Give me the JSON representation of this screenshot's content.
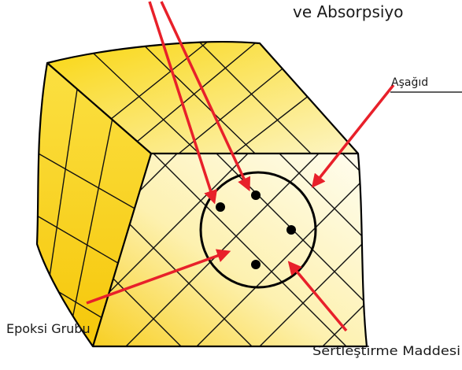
{
  "labels": {
    "top_right": "ve Absorpsiyo",
    "right": "Aşağıd",
    "epoxy": "Epoksi Grubu",
    "hardener": "Sertleştirme Maddesi"
  }
}
